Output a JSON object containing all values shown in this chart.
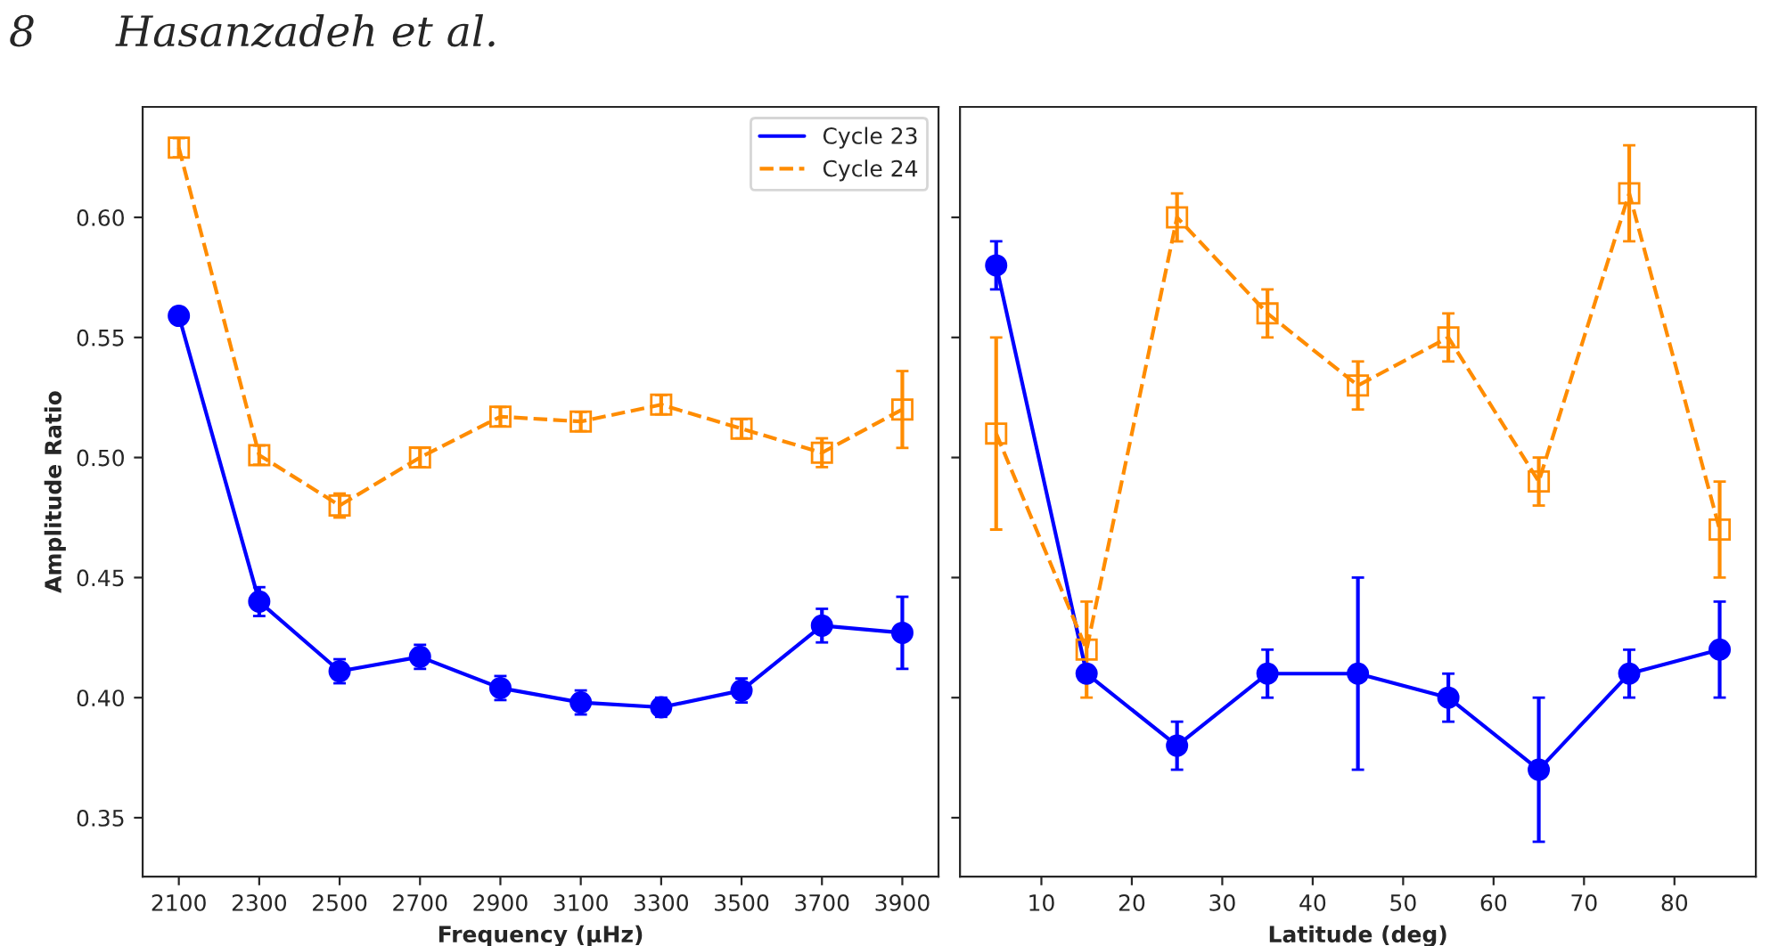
{
  "chart_data": [
    {
      "type": "line",
      "xlabel": "Frequency (μHz)",
      "ylabel": "Amplitude Ratio",
      "annotations": [
        "8      Hasanzadeh et al."
      ],
      "x": [
        2100,
        2300,
        2500,
        2700,
        2900,
        3100,
        3300,
        3500,
        3700,
        3900
      ],
      "series": [
        {
          "name": "Cycle 23",
          "color": "#0000ff",
          "marker": "circle",
          "line_style": "solid",
          "values": [
            0.559,
            0.44,
            0.411,
            0.417,
            0.404,
            0.398,
            0.396,
            0.403,
            0.43,
            0.427
          ],
          "errors": [
            0.003,
            0.006,
            0.005,
            0.005,
            0.005,
            0.005,
            0.004,
            0.005,
            0.007,
            0.015
          ]
        },
        {
          "name": "Cycle 24",
          "color": "#ff8c00",
          "marker": "square",
          "line_style": "dashed",
          "values": [
            0.629,
            0.501,
            0.48,
            0.5,
            0.517,
            0.515,
            0.522,
            0.512,
            0.502,
            0.52
          ],
          "errors": [
            0.004,
            0.004,
            0.005,
            0.004,
            0.004,
            0.004,
            0.004,
            0.004,
            0.006,
            0.016
          ]
        }
      ],
      "xlim": [
        2010,
        3990
      ],
      "xticks": [
        2100,
        2300,
        2500,
        2700,
        2900,
        3100,
        3300,
        3500,
        3700,
        3900
      ],
      "ylim": [
        0.3255,
        0.646
      ],
      "yticks": [
        {
          "value": 0.35,
          "label": "0.35"
        },
        {
          "value": 0.4,
          "label": "0.40"
        },
        {
          "value": 0.45,
          "label": "0.45"
        },
        {
          "value": 0.5,
          "label": "0.50"
        },
        {
          "value": 0.55,
          "label": "0.55"
        },
        {
          "value": 0.6,
          "label": "0.60"
        }
      ],
      "legend": "top right"
    },
    {
      "type": "line",
      "xlabel": "Latitude (deg)",
      "x": [
        5,
        15,
        25,
        35,
        45,
        55,
        65,
        75,
        85
      ],
      "series": [
        {
          "color": "#0000ff",
          "marker": "circle",
          "line_style": "solid",
          "values": [
            0.58,
            0.41,
            0.38,
            0.41,
            0.41,
            0.4,
            0.37,
            0.41,
            0.42
          ],
          "errors": [
            0.01,
            null,
            0.01,
            0.01,
            0.04,
            0.01,
            0.03,
            0.01,
            0.02
          ]
        },
        {
          "color": "#ff8c00",
          "marker": "square",
          "line_style": "dashed",
          "values": [
            0.51,
            0.42,
            0.6,
            0.56,
            0.53,
            0.55,
            0.49,
            0.61,
            0.47
          ],
          "errors": [
            0.04,
            0.02,
            0.01,
            0.01,
            0.01,
            0.01,
            0.01,
            0.02,
            0.02
          ]
        }
      ],
      "xlim": [
        1,
        89
      ],
      "xticks": [
        10,
        20,
        30,
        40,
        50,
        60,
        70,
        80
      ],
      "ylim": [
        0.3255,
        0.646
      ],
      "yticks": [
        {
          "value": 0.35,
          "label": null
        },
        {
          "value": 0.4,
          "label": null
        },
        {
          "value": 0.45,
          "label": null
        },
        {
          "value": 0.5,
          "label": null
        },
        {
          "value": 0.55,
          "label": null
        },
        {
          "value": 0.6,
          "label": null
        }
      ],
      "tick_labels": "x"
    }
  ]
}
